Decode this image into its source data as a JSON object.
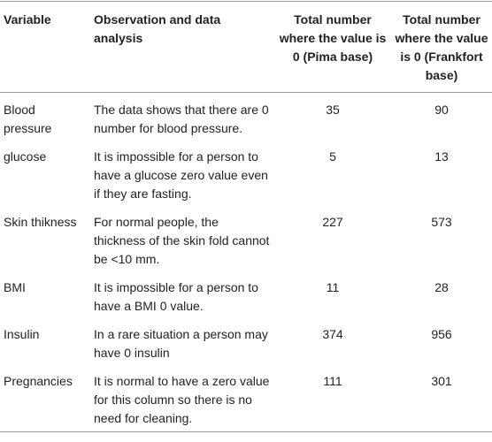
{
  "table": {
    "header": [
      "Variable",
      "Observation and data analysis",
      "Total number where the value is 0 (Pima base)",
      "Total number where the value is 0 (Frankfort base)"
    ],
    "rows": [
      [
        "Blood pressure",
        "The data shows that there are 0 number for blood pressure.",
        35,
        90
      ],
      [
        "glucose",
        "It is impossible for a person to have a glucose zero value even if they are fasting.",
        5,
        13
      ],
      [
        "Skin thikness",
        "For normal people, the thickness of the skin fold cannot be <10 mm.",
        227,
        573
      ],
      [
        "BMI",
        "It is impossible for a person to have a BMI 0 value.",
        11,
        28
      ],
      [
        "Insulin",
        "In a rare situation a person may have 0 insulin",
        374,
        956
      ],
      [
        "Pregnancies",
        "It is normal to have a zero value for this column so there is no need for cleaning.",
        111,
        301
      ]
    ]
  }
}
